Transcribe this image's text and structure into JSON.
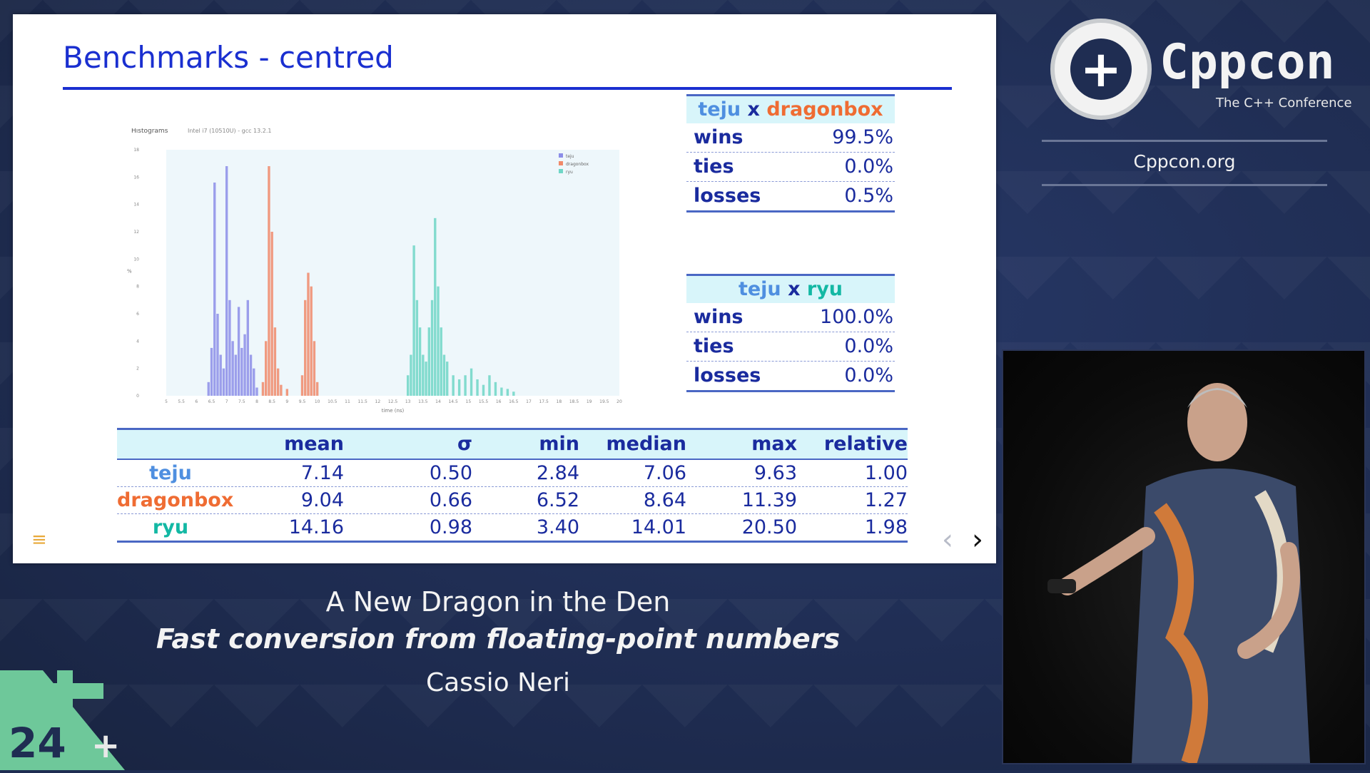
{
  "slide": {
    "title": "Benchmarks - centred",
    "menu_icon": "menu-icon",
    "nav": {
      "prev": "‹",
      "next": "›"
    }
  },
  "chart_data": {
    "type": "bar",
    "title": "Histograms",
    "subtitle": "Intel i7 (10510U) - gcc 13.2.1",
    "xlabel": "time (ns)",
    "ylabel": "%",
    "xlim": [
      5,
      20
    ],
    "ylim": [
      0,
      18
    ],
    "xticks": [
      "5",
      "5.5",
      "6",
      "6.5",
      "7",
      "7.5",
      "8",
      "8.5",
      "9",
      "9.5",
      "10",
      "10.5",
      "11",
      "11.5",
      "12",
      "12.5",
      "13",
      "13.5",
      "14",
      "14.5",
      "15",
      "15.5",
      "16",
      "16.5",
      "17",
      "17.5",
      "18",
      "18.5",
      "19",
      "19.5",
      "20"
    ],
    "yticks": [
      "0",
      "2",
      "4",
      "6",
      "8",
      "10",
      "12",
      "14",
      "16",
      "18"
    ],
    "legend": [
      "teju",
      "dragonbox",
      "ryu"
    ],
    "legend_position": "top-right",
    "series": [
      {
        "name": "teju",
        "color": "#8c8ee8",
        "x": [
          6.4,
          6.5,
          6.6,
          6.7,
          6.8,
          6.9,
          7.0,
          7.1,
          7.2,
          7.3,
          7.4,
          7.5,
          7.6,
          7.7,
          7.8,
          7.9,
          8.0
        ],
        "values": [
          1.0,
          3.5,
          15.6,
          6.0,
          3.0,
          2.0,
          16.8,
          7.0,
          4.0,
          3.0,
          6.5,
          3.5,
          4.5,
          7.0,
          3.0,
          2.0,
          0.6
        ]
      },
      {
        "name": "dragonbox",
        "color": "#f08a6a",
        "x": [
          8.2,
          8.3,
          8.4,
          8.5,
          8.6,
          8.7,
          8.8,
          9.0,
          9.5,
          9.6,
          9.7,
          9.8,
          9.9,
          10.0
        ],
        "values": [
          1.0,
          4.0,
          16.8,
          12.0,
          5.0,
          2.0,
          0.8,
          0.5,
          1.5,
          7.0,
          9.0,
          8.0,
          4.0,
          1.0
        ]
      },
      {
        "name": "ryu",
        "color": "#6fd6c6",
        "x": [
          13.0,
          13.1,
          13.2,
          13.3,
          13.4,
          13.5,
          13.6,
          13.7,
          13.8,
          13.9,
          14.0,
          14.1,
          14.2,
          14.3,
          14.5,
          14.7,
          14.9,
          15.1,
          15.3,
          15.5,
          15.7,
          15.9,
          16.1,
          16.3,
          16.5
        ],
        "values": [
          1.5,
          3.0,
          11.0,
          7.0,
          5.0,
          3.0,
          2.5,
          5.0,
          7.0,
          13.0,
          8.0,
          5.0,
          3.0,
          2.5,
          1.5,
          1.2,
          1.5,
          2.0,
          1.2,
          0.8,
          1.5,
          1.0,
          0.6,
          0.5,
          0.3
        ]
      }
    ]
  },
  "vs_dragonbox": {
    "left": "teju",
    "x": "x",
    "right": "dragonbox",
    "rows": [
      {
        "label": "wins",
        "value": "99.5%"
      },
      {
        "label": "ties",
        "value": "0.0%"
      },
      {
        "label": "losses",
        "value": "0.5%"
      }
    ]
  },
  "vs_ryu": {
    "left": "teju",
    "x": "x",
    "right": "ryu",
    "rows": [
      {
        "label": "wins",
        "value": "100.0%"
      },
      {
        "label": "ties",
        "value": "0.0%"
      },
      {
        "label": "losses",
        "value": "0.0%"
      }
    ]
  },
  "stats": {
    "headers": [
      "",
      "mean",
      "σ",
      "min",
      "median",
      "max",
      "relative"
    ],
    "rows": [
      {
        "name": "teju",
        "mean": "7.14",
        "sigma": "0.50",
        "min": "2.84",
        "median": "7.06",
        "max": "9.63",
        "relative": "1.00"
      },
      {
        "name": "dragonbox",
        "mean": "9.04",
        "sigma": "0.66",
        "min": "6.52",
        "median": "8.64",
        "max": "11.39",
        "relative": "1.27"
      },
      {
        "name": "ryu",
        "mean": "14.16",
        "sigma": "0.98",
        "min": "3.40",
        "median": "14.01",
        "max": "20.50",
        "relative": "1.98"
      }
    ]
  },
  "brand": {
    "logo_glyph": "+",
    "name": "Cppcon",
    "subtitle": "The C++ Conference",
    "url": "Cppcon.org"
  },
  "talk": {
    "title": "A New Dragon in the Den",
    "subtitle": "Fast conversion from floating-point numbers",
    "speaker": "Cassio Neri"
  },
  "corner": {
    "year": "24",
    "plus": "+"
  }
}
